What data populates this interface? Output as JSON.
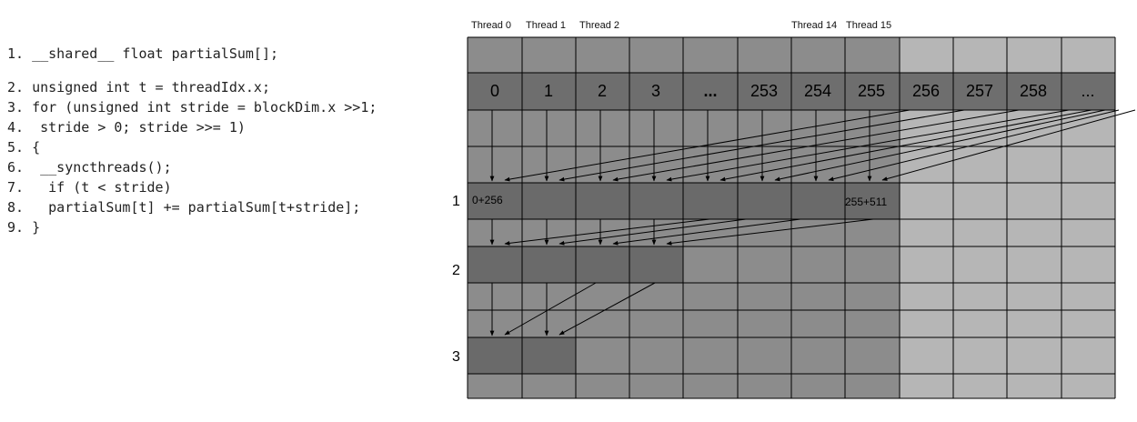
{
  "code_lines": [
    "1. __shared__ float partialSum[];",
    "2. unsigned int t = threadIdx.x;",
    "3. for (unsigned int stride = blockDim.x >>1;",
    "4.  stride > 0; stride >>= 1)",
    "5. {",
    "6.  __syncthreads();",
    "7.   if (t < stride)",
    "8.   partialSum[t] += partialSum[t+stride];",
    "9. }"
  ],
  "diagram": {
    "thread_labels": [
      "Thread 0",
      "Thread 1",
      "Thread 2",
      "Thread 14",
      "Thread 15"
    ],
    "index_labels": [
      "0",
      "1",
      "2",
      "3",
      "...",
      "253",
      "254",
      "255",
      "256",
      "257",
      "258",
      "..."
    ],
    "step_labels": [
      "1",
      "2",
      "3"
    ],
    "cell_labels": {
      "first": "0+256",
      "last": "255+511"
    },
    "colors": {
      "light": "#b6b6b6",
      "medium": "#8c8c8c",
      "index_row": "#6e6e6e",
      "dark_cell": "#6a6a6a",
      "line": "#000000"
    }
  }
}
